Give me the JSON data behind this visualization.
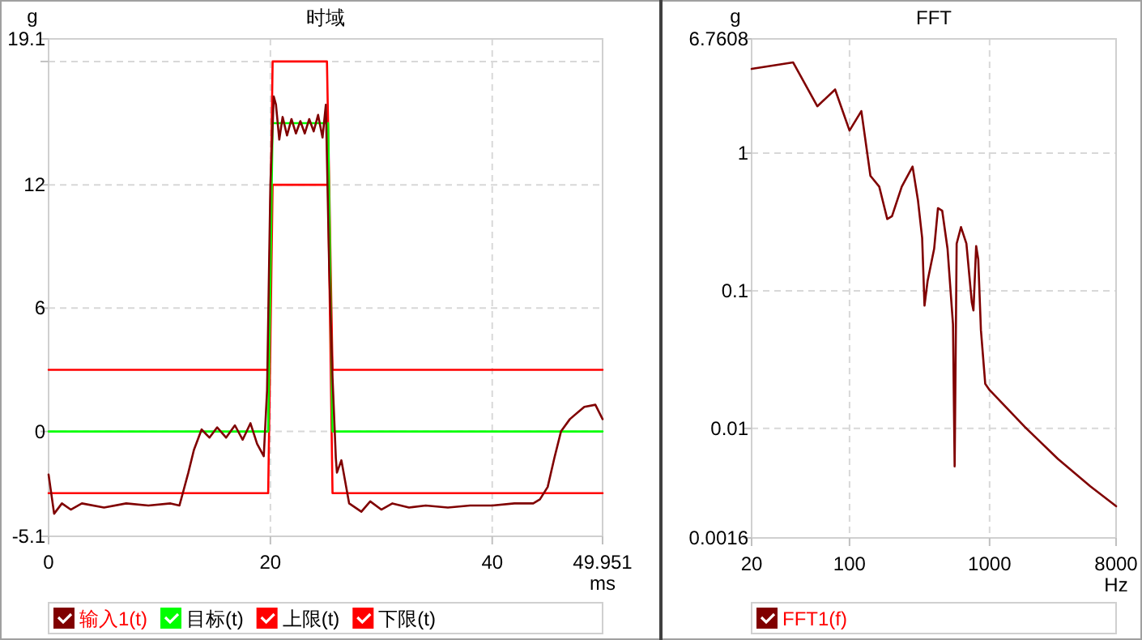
{
  "chart_data": [
    {
      "type": "line",
      "title": "时域",
      "xlabel": "ms",
      "ylabel": "g",
      "xlim": [
        0,
        49.951
      ],
      "ylim": [
        -5.1,
        19.1
      ],
      "xticks": [
        0,
        20,
        40,
        49.951
      ],
      "yticks": [
        -5.1,
        0,
        6,
        12,
        {
          "value": 18,
          "label": null
        },
        19.1
      ],
      "grid": true,
      "legend": "bottom",
      "series": [
        {
          "name": "输入1(t)",
          "color": "#800000",
          "x": [
            0,
            0.5,
            1.2,
            2,
            3,
            5,
            7,
            9,
            11,
            11.8,
            12.1,
            12.6,
            13.1,
            13.8,
            14.5,
            15.2,
            16,
            16.8,
            17.5,
            18.2,
            18.8,
            19.4,
            19.7,
            20,
            20.3,
            20.5,
            20.8,
            21.1,
            21.5,
            21.9,
            22.3,
            22.7,
            23.1,
            23.5,
            23.9,
            24.3,
            24.7,
            25,
            25.3,
            25.6,
            25.9,
            26,
            26.4,
            27.1,
            28.2,
            29,
            30,
            31,
            32.5,
            34,
            36,
            38,
            40,
            42,
            43.7,
            44.3,
            45,
            45.6,
            46.2,
            47,
            48.3,
            49.3,
            49.951
          ],
          "values": [
            -2.1,
            -4.0,
            -3.5,
            -3.8,
            -3.5,
            -3.7,
            -3.5,
            -3.6,
            -3.5,
            -3.6,
            -3.0,
            -2.0,
            -0.9,
            0.1,
            -0.3,
            0.2,
            -0.3,
            0.3,
            -0.4,
            0.4,
            -0.6,
            -1.2,
            2.0,
            12.0,
            16.3,
            15.9,
            14.2,
            15.3,
            14.4,
            15.2,
            14.5,
            15.1,
            14.5,
            15.2,
            14.6,
            15.4,
            14.3,
            15.9,
            8.0,
            2.6,
            -1.3,
            -2.0,
            -1.4,
            -3.5,
            -3.9,
            -3.4,
            -3.8,
            -3.5,
            -3.7,
            -3.6,
            -3.7,
            -3.6,
            -3.6,
            -3.5,
            -3.5,
            -3.3,
            -2.7,
            -1.3,
            0,
            0.6,
            1.2,
            1.3,
            0.6
          ]
        },
        {
          "name": "目标(t)",
          "color": "#00ff00",
          "x": [
            0,
            19.8,
            20.2,
            25.2,
            25.6,
            49.951
          ],
          "values": [
            0,
            0,
            15,
            15,
            0,
            0
          ]
        },
        {
          "name": "上限(t)",
          "color": "#ff0000",
          "x": [
            0,
            19.8,
            20.2,
            25.1,
            25.6,
            49.951
          ],
          "values": [
            3,
            3,
            18,
            18,
            3,
            3
          ]
        },
        {
          "name": "下限(t)",
          "color": "#ff0000",
          "x": [
            0,
            19.8,
            20.2,
            25.2,
            25.6,
            49.951
          ],
          "values": [
            -3,
            -3,
            12,
            12,
            -3,
            -3
          ]
        }
      ]
    },
    {
      "type": "line",
      "title": "FFT",
      "xlabel": "Hz",
      "ylabel": "g",
      "log": "xy",
      "xlim": [
        20,
        8000
      ],
      "ylim": [
        0.0016,
        6.7608
      ],
      "xticks": [
        20,
        100,
        1000,
        8000
      ],
      "yticks": [
        0.0016,
        0.01,
        0.1,
        1,
        6.7608
      ],
      "grid": true,
      "legend": "bottom",
      "series": [
        {
          "name": "FFT1(f)",
          "color": "#800000",
          "x": [
            20,
            39.6,
            58.9,
            78.9,
            100,
            121.5,
            141,
            163,
            186,
            201,
            236,
            282,
            308,
            330,
            343,
            361,
            402,
            428,
            459,
            501,
            548,
            563,
            582,
            625,
            683,
            747,
            767,
            802,
            830,
            867,
            931,
            1000,
            1811,
            3076,
            5236,
            8000
          ],
          "values": [
            4.09,
            4.56,
            2.19,
            2.9,
            1.46,
            2.02,
            0.684,
            0.571,
            0.332,
            0.348,
            0.571,
            0.798,
            0.456,
            0.242,
            0.078,
            0.118,
            0.202,
            0.398,
            0.381,
            0.202,
            0.057,
            0.0053,
            0.22,
            0.29,
            0.22,
            0.082,
            0.072,
            0.211,
            0.169,
            0.052,
            0.0211,
            0.019,
            0.0101,
            0.006,
            0.0038,
            0.00272
          ]
        }
      ]
    }
  ]
}
